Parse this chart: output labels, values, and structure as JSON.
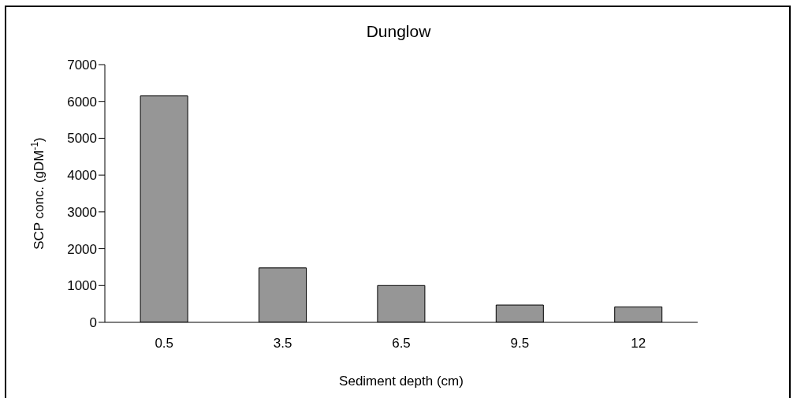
{
  "chart_data": {
    "type": "bar",
    "title": "Dunglow",
    "xlabel": "Sediment depth (cm)",
    "ylabel": "SCP conc. (gDM$^{-1}$)",
    "categories": [
      "0.5",
      "3.5",
      "6.5",
      "9.5",
      "12"
    ],
    "values": [
      6150,
      1480,
      1000,
      470,
      420
    ],
    "color": "#969696",
    "ylim": [
      0,
      7000
    ],
    "yticks": [
      0,
      1000,
      2000,
      3000,
      4000,
      5000,
      6000,
      7000
    ],
    "grid": false,
    "legend": false
  }
}
